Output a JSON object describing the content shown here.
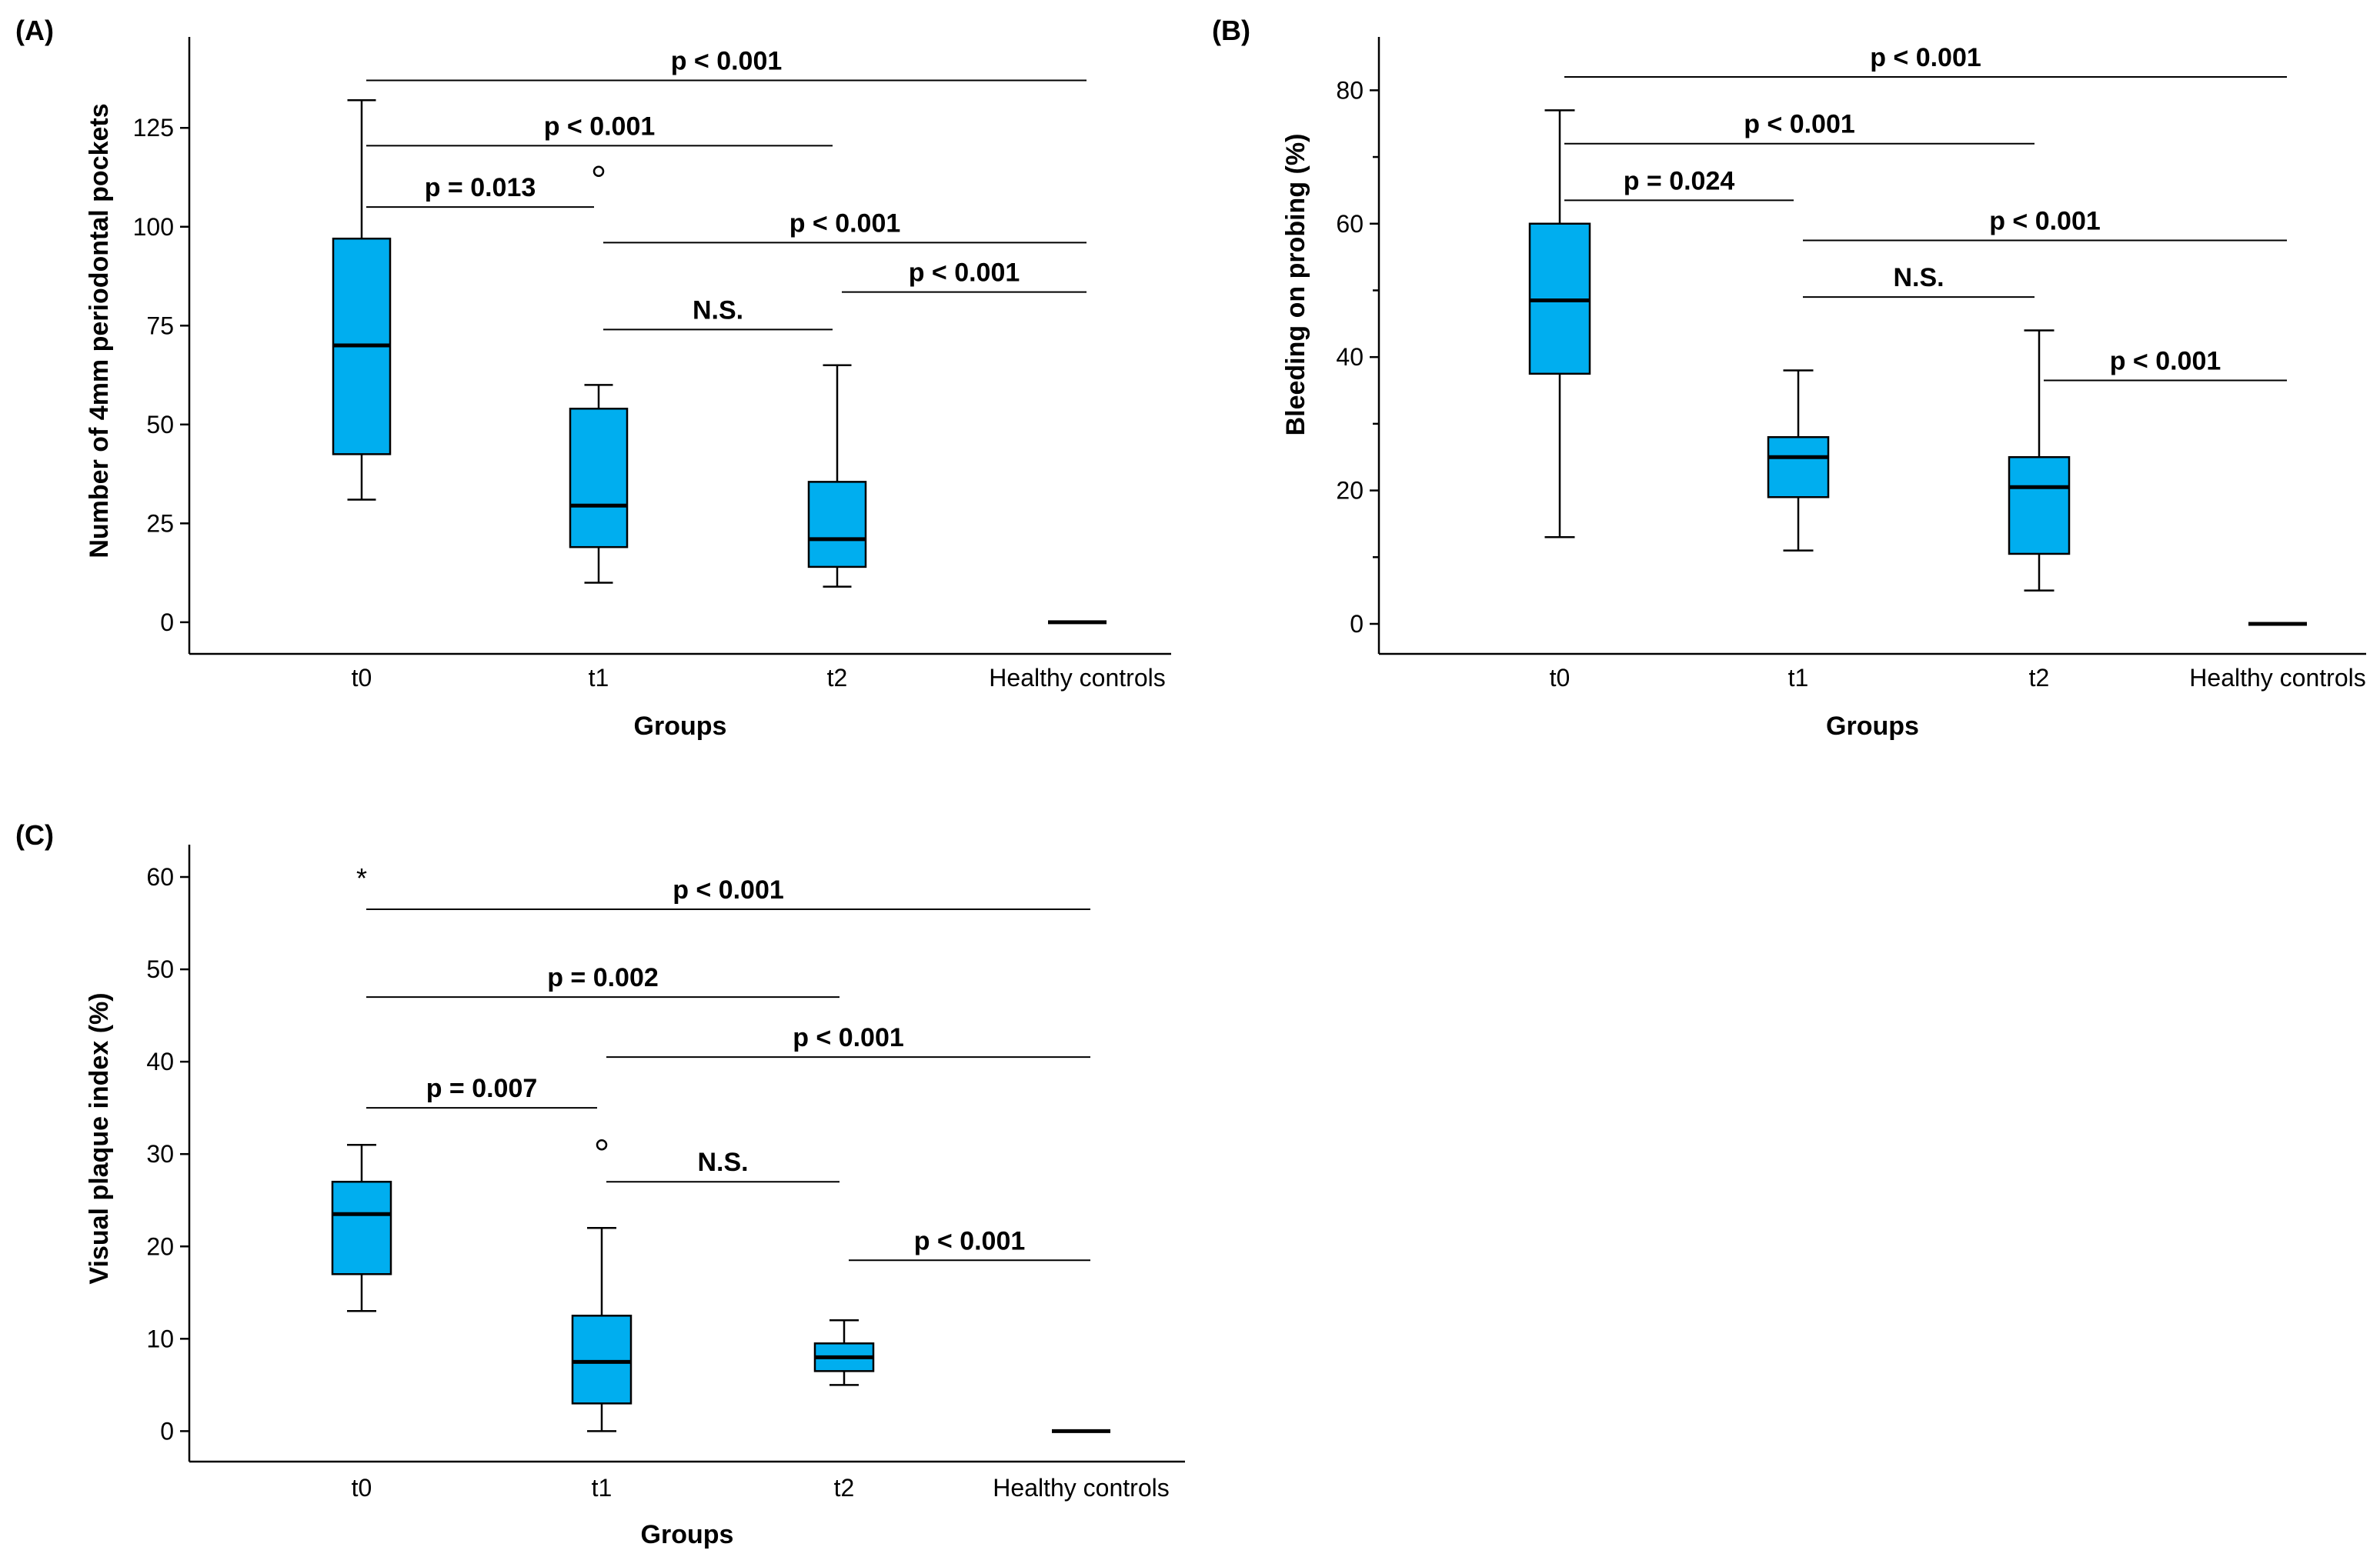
{
  "colors": {
    "box_fill": "#00AEEF"
  },
  "chart_data": [
    {
      "id": "A",
      "type": "box",
      "panel_label": "(A)",
      "xlabel": "Groups",
      "ylabel": "Number of 4mm periodontal pockets",
      "ylim": [
        -8,
        148
      ],
      "yticks": [
        0,
        25,
        50,
        75,
        100,
        125
      ],
      "ytick_labels": [
        "0",
        "25",
        "50",
        "75",
        "100",
        "125"
      ],
      "minor_ticks": [],
      "categories": [
        "t0",
        "t1",
        "t2",
        "Healthy controls"
      ],
      "boxes": [
        {
          "min": 31,
          "q1": 42.5,
          "median": 70,
          "q3": 97,
          "max": 132
        },
        {
          "min": 10,
          "q1": 19,
          "median": 29.5,
          "q3": 54,
          "max": 60
        },
        {
          "min": 9,
          "q1": 14,
          "median": 21,
          "q3": 35.5,
          "max": 65
        },
        {
          "min": 0,
          "q1": 0,
          "median": 0,
          "q3": 0,
          "max": 0
        }
      ],
      "outliers": [
        {
          "group": 1,
          "value": 114
        }
      ],
      "extremes": [],
      "comparisons": [
        {
          "from": 0,
          "to": 3,
          "y": 137,
          "label": "p < 0.001"
        },
        {
          "from": 0,
          "to": 2,
          "y": 120.5,
          "label": "p < 0.001"
        },
        {
          "from": 0,
          "to": 1,
          "y": 105,
          "label": "p = 0.013"
        },
        {
          "from": 1,
          "to": 3,
          "y": 96,
          "label": "p < 0.001"
        },
        {
          "from": 2,
          "to": 3,
          "y": 83.5,
          "label": "p < 0.001"
        },
        {
          "from": 1,
          "to": 2,
          "y": 74,
          "label": "N.S."
        }
      ]
    },
    {
      "id": "B",
      "type": "box",
      "panel_label": "(B)",
      "xlabel": "Groups",
      "ylabel": "Bleeding on probing (%)",
      "ylim": [
        -4.5,
        88
      ],
      "yticks": [
        0,
        20,
        40,
        60,
        80
      ],
      "ytick_labels": [
        "0",
        "20",
        "40",
        "60",
        "80"
      ],
      "minor_ticks": [
        10,
        30,
        50,
        70
      ],
      "categories": [
        "t0",
        "t1",
        "t2",
        "Healthy controls"
      ],
      "boxes": [
        {
          "min": 13,
          "q1": 37.5,
          "median": 48.5,
          "q3": 60,
          "max": 77
        },
        {
          "min": 11,
          "q1": 19,
          "median": 25,
          "q3": 28,
          "max": 38
        },
        {
          "min": 5,
          "q1": 10.5,
          "median": 20.5,
          "q3": 25,
          "max": 44
        },
        {
          "min": 0,
          "q1": 0,
          "median": 0,
          "q3": 0,
          "max": 0
        }
      ],
      "outliers": [],
      "extremes": [],
      "comparisons": [
        {
          "from": 0,
          "to": 3,
          "y": 82,
          "label": "p < 0.001"
        },
        {
          "from": 0,
          "to": 2,
          "y": 72,
          "label": "p < 0.001"
        },
        {
          "from": 0,
          "to": 1,
          "y": 63.5,
          "label": "p = 0.024"
        },
        {
          "from": 1,
          "to": 3,
          "y": 57.5,
          "label": "p < 0.001"
        },
        {
          "from": 1,
          "to": 2,
          "y": 49,
          "label": "N.S."
        },
        {
          "from": 2,
          "to": 3,
          "y": 36.5,
          "label": "p < 0.001"
        }
      ]
    },
    {
      "id": "C",
      "type": "box",
      "panel_label": "(C)",
      "xlabel": "Groups",
      "ylabel": "Visual plaque index (%)",
      "ylim": [
        -3.3,
        63.5
      ],
      "yticks": [
        0,
        10,
        20,
        30,
        40,
        50,
        60
      ],
      "ytick_labels": [
        "0",
        "10",
        "20",
        "30",
        "40",
        "50",
        "60"
      ],
      "minor_ticks": [],
      "categories": [
        "t0",
        "t1",
        "t2",
        "Healthy controls"
      ],
      "boxes": [
        {
          "min": 13,
          "q1": 17,
          "median": 23.5,
          "q3": 27,
          "max": 31
        },
        {
          "min": 0,
          "q1": 3,
          "median": 7.5,
          "q3": 12.5,
          "max": 22
        },
        {
          "min": 5,
          "q1": 6.5,
          "median": 8,
          "q3": 9.5,
          "max": 12
        },
        {
          "min": 0,
          "q1": 0,
          "median": 0,
          "q3": 0,
          "max": 0
        }
      ],
      "outliers": [
        {
          "group": 1,
          "value": 31
        }
      ],
      "extremes": [
        {
          "group": 0,
          "value": 60,
          "symbol": "*"
        }
      ],
      "comparisons": [
        {
          "from": 0,
          "to": 3,
          "y": 56.5,
          "label": "p < 0.001"
        },
        {
          "from": 0,
          "to": 2,
          "y": 47,
          "label": "p = 0.002"
        },
        {
          "from": 1,
          "to": 3,
          "y": 40.5,
          "label": "p < 0.001"
        },
        {
          "from": 0,
          "to": 1,
          "y": 35,
          "label": "p = 0.007"
        },
        {
          "from": 1,
          "to": 2,
          "y": 27,
          "label": "N.S."
        },
        {
          "from": 2,
          "to": 3,
          "y": 18.5,
          "label": "p < 0.001"
        }
      ]
    }
  ]
}
